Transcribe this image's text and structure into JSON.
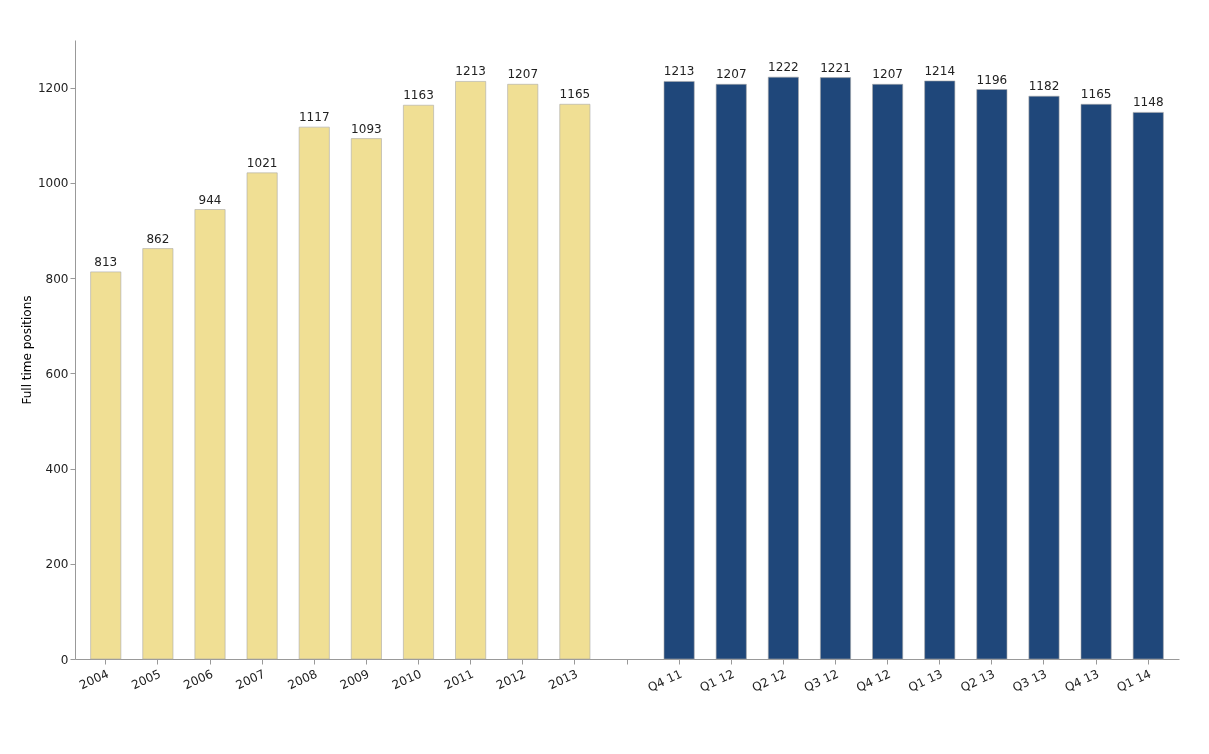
{
  "chart_data": {
    "type": "bar",
    "ylabel": "Full time positions",
    "categories": [
      "2004",
      "2005",
      "2006",
      "2007",
      "2008",
      "2009",
      "2010",
      "2011",
      "2012",
      "2013",
      null,
      "Q4 11",
      "Q1 12",
      "Q2 12",
      "Q3 12",
      "Q4 12",
      "Q1 13",
      "Q2 13",
      "Q3 13",
      "Q4 13",
      "Q1 14"
    ],
    "values": [
      813,
      862,
      944,
      1021,
      1117,
      1093,
      1163,
      1213,
      1207,
      1165,
      null,
      1213,
      1207,
      1222,
      1221,
      1207,
      1214,
      1196,
      1182,
      1165,
      1148
    ],
    "colors": [
      "#f0df94",
      "#f0df94",
      "#f0df94",
      "#f0df94",
      "#f0df94",
      "#f0df94",
      "#f0df94",
      "#f0df94",
      "#f0df94",
      "#f0df94",
      null,
      "#1f477a",
      "#1f477a",
      "#1f477a",
      "#1f477a",
      "#1f477a",
      "#1f477a",
      "#1f477a",
      "#1f477a",
      "#1f477a",
      "#1f477a"
    ],
    "ylim": [
      0,
      1300
    ],
    "yticks": [
      0,
      200,
      400,
      600,
      800,
      1000,
      1200
    ],
    "data_labels": true,
    "grid": false
  }
}
